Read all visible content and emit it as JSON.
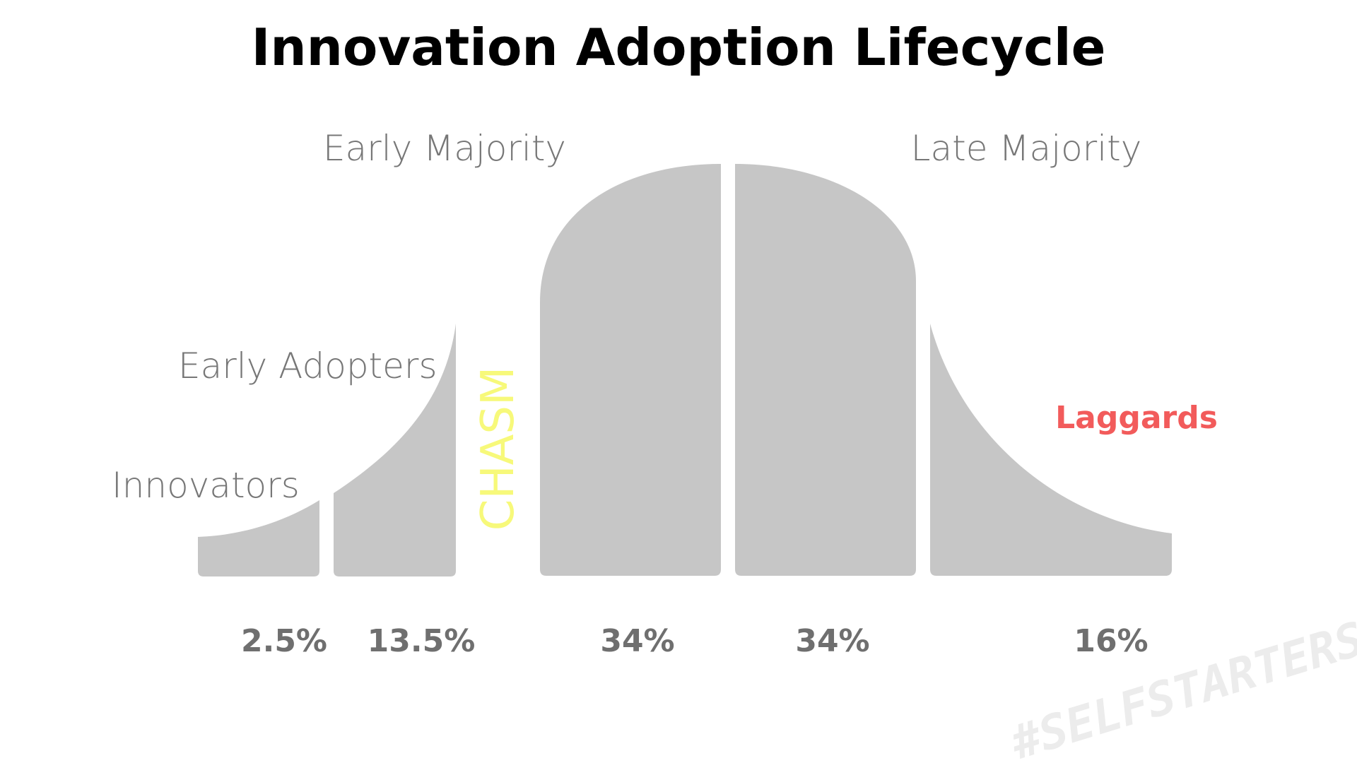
{
  "title": "Innovation Adoption Lifecycle",
  "colors": {
    "segment_fill": "#c6c6c6",
    "label_gray": "#777777",
    "percent_gray": "#6f6f6f",
    "chasm_yellow": "#f7f97a",
    "laggards_red": "#f25b5b",
    "watermark": "#ececec"
  },
  "segments": [
    {
      "label": "Innovators",
      "percent": "2.5%",
      "share": 2.5
    },
    {
      "label": "Early Adopters",
      "percent": "13.5%",
      "share": 13.5
    },
    {
      "label": "Early Majority",
      "percent": "34%",
      "share": 34
    },
    {
      "label": "Late Majority",
      "percent": "34%",
      "share": 34
    },
    {
      "label": "Laggards",
      "percent": "16%",
      "share": 16
    }
  ],
  "chasm_label": "CHASM",
  "watermark": "#SELFSTARTERS"
}
